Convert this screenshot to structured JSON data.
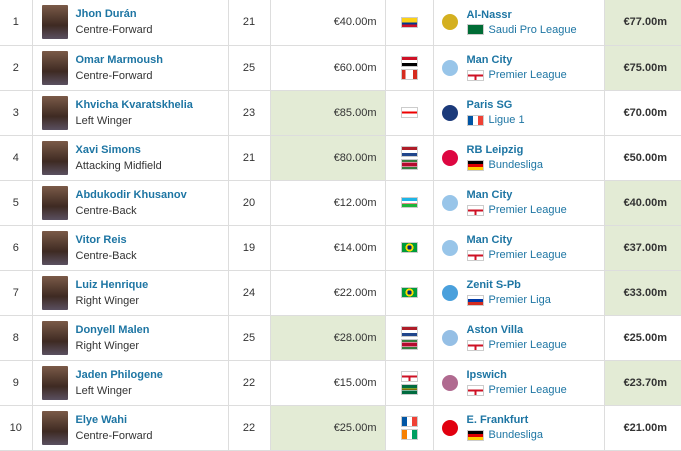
{
  "rows": [
    {
      "rank": "1",
      "name": "Jhon Durán",
      "position": "Centre-Forward",
      "age": "21",
      "market_value": "€40.00m",
      "nationalities": [
        "colombia"
      ],
      "club": "Al-Nassr",
      "league": "Saudi Pro League",
      "league_flag": "saudi",
      "crest": "#d4b020",
      "fee": "€77.00m",
      "highlight": "fee"
    },
    {
      "rank": "2",
      "name": "Omar Marmoush",
      "position": "Centre-Forward",
      "age": "25",
      "market_value": "€60.00m",
      "nationalities": [
        "egypt",
        "canada"
      ],
      "club": "Man City",
      "league": "Premier League",
      "league_flag": "england",
      "crest": "#98c5e9",
      "fee": "€75.00m",
      "highlight": "fee"
    },
    {
      "rank": "3",
      "name": "Khvicha Kvaratskhelia",
      "position": "Left Winger",
      "age": "23",
      "market_value": "€85.00m",
      "nationalities": [
        "georgia"
      ],
      "club": "Paris SG",
      "league": "Ligue 1",
      "league_flag": "france",
      "crest": "#1b3a7a",
      "fee": "€70.00m",
      "highlight": "mv"
    },
    {
      "rank": "4",
      "name": "Xavi Simons",
      "position": "Attacking Midfield",
      "age": "21",
      "market_value": "€80.00m",
      "nationalities": [
        "netherlands",
        "suriname"
      ],
      "club": "RB Leipzig",
      "league": "Bundesliga",
      "league_flag": "germany",
      "crest": "#dd0741",
      "fee": "€50.00m",
      "highlight": "mv"
    },
    {
      "rank": "5",
      "name": "Abdukodir Khusanov",
      "position": "Centre-Back",
      "age": "20",
      "market_value": "€12.00m",
      "nationalities": [
        "uzbekistan"
      ],
      "club": "Man City",
      "league": "Premier League",
      "league_flag": "england",
      "crest": "#98c5e9",
      "fee": "€40.00m",
      "highlight": "fee"
    },
    {
      "rank": "6",
      "name": "Vitor Reis",
      "position": "Centre-Back",
      "age": "19",
      "market_value": "€14.00m",
      "nationalities": [
        "brazil"
      ],
      "club": "Man City",
      "league": "Premier League",
      "league_flag": "england",
      "crest": "#98c5e9",
      "fee": "€37.00m",
      "highlight": "fee"
    },
    {
      "rank": "7",
      "name": "Luiz Henrique",
      "position": "Right Winger",
      "age": "24",
      "market_value": "€22.00m",
      "nationalities": [
        "brazil"
      ],
      "club": "Zenit S-Pb",
      "league": "Premier Liga",
      "league_flag": "russia",
      "crest": "#4aa0dc",
      "fee": "€33.00m",
      "highlight": "fee"
    },
    {
      "rank": "8",
      "name": "Donyell Malen",
      "position": "Right Winger",
      "age": "25",
      "market_value": "€28.00m",
      "nationalities": [
        "netherlands",
        "suriname"
      ],
      "club": "Aston Villa",
      "league": "Premier League",
      "league_flag": "england",
      "crest": "#95bfe5",
      "fee": "€25.00m",
      "highlight": "mv"
    },
    {
      "rank": "9",
      "name": "Jaden Philogene",
      "position": "Left Winger",
      "age": "22",
      "market_value": "€15.00m",
      "nationalities": [
        "england",
        "dominica"
      ],
      "club": "Ipswich",
      "league": "Premier League",
      "league_flag": "england",
      "crest": "#b06a90",
      "fee": "€23.70m",
      "highlight": "fee"
    },
    {
      "rank": "10",
      "name": "Elye Wahi",
      "position": "Centre-Forward",
      "age": "22",
      "market_value": "€25.00m",
      "nationalities": [
        "france",
        "ivory-coast"
      ],
      "club": "E. Frankfurt",
      "league": "Bundesliga",
      "league_flag": "germany",
      "crest": "#e1000f",
      "fee": "€21.00m",
      "highlight": "mv"
    }
  ],
  "colors": {
    "link": "#1d75a3",
    "highlight": "#e3ebd5"
  }
}
